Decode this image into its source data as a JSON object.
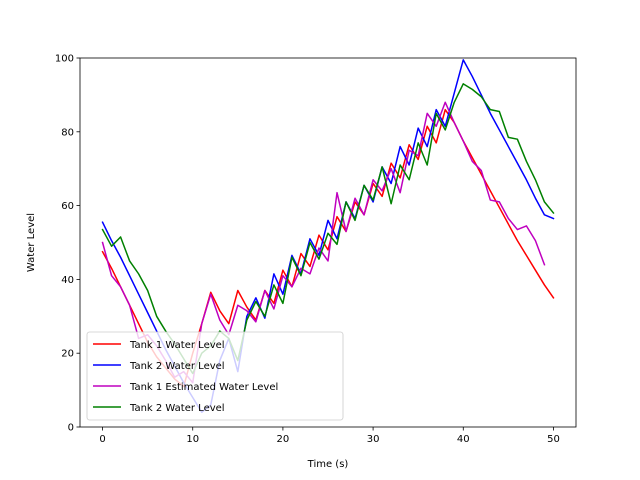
{
  "chart_data": {
    "type": "line",
    "title": "",
    "xlabel": "Time (s)",
    "ylabel": "Water Level",
    "xlim": [
      -2.5,
      52.5
    ],
    "ylim": [
      0,
      100
    ],
    "xticks": [
      0,
      10,
      20,
      30,
      40,
      50
    ],
    "yticks": [
      0,
      20,
      40,
      60,
      80,
      100
    ],
    "grid": false,
    "legend_position": "lower-left",
    "series": [
      {
        "name": "Tank 1 Water Level",
        "color": "#ff0000",
        "x": [
          0,
          1,
          2,
          3,
          4,
          5,
          6,
          7,
          8,
          9,
          10,
          11,
          12,
          13,
          14,
          15,
          16,
          17,
          18,
          19,
          20,
          21,
          22,
          23,
          24,
          25,
          26,
          27,
          28,
          29,
          30,
          31,
          32,
          33,
          34,
          35,
          36,
          37,
          38,
          39,
          40,
          41,
          42,
          43,
          44,
          45,
          46,
          47,
          48,
          49,
          50
        ],
        "y": [
          47.5,
          43,
          38,
          33,
          28,
          23,
          19,
          16,
          13,
          11,
          20,
          28,
          36.5,
          31.5,
          28,
          37,
          32.5,
          29,
          37,
          33.5,
          42.5,
          38,
          47,
          43.5,
          52,
          48,
          57,
          53,
          61,
          57.5,
          66,
          62.5,
          71.5,
          67.5,
          76.5,
          72.5,
          81.5,
          77,
          86,
          82.5,
          77.5,
          73,
          68.5,
          64,
          59.5,
          55,
          50.5,
          46.5,
          42.5,
          38.5,
          35
        ]
      },
      {
        "name": "Tank 2 Water Level",
        "color": "#0000ff",
        "x": [
          0,
          1,
          2,
          3,
          4,
          5,
          6,
          7,
          8,
          9,
          10,
          11,
          12,
          13,
          14,
          15,
          16,
          17,
          18,
          19,
          20,
          21,
          22,
          23,
          24,
          25,
          26,
          27,
          28,
          29,
          30,
          31,
          32,
          33,
          34,
          35,
          36,
          37,
          38,
          39,
          40,
          41,
          42,
          43,
          44,
          45,
          46,
          47,
          48,
          49,
          50
        ],
        "y": [
          55.5,
          50.5,
          46,
          41,
          36,
          31,
          26,
          21,
          16.5,
          12,
          8,
          4,
          6,
          18,
          24,
          15,
          30,
          35,
          29.5,
          41.5,
          36,
          46.5,
          41.5,
          51,
          46.5,
          56,
          51,
          61,
          56.5,
          65.5,
          61,
          70.5,
          66,
          76,
          71,
          81,
          76,
          86,
          81.5,
          90.5,
          99.5,
          95,
          90,
          85,
          80.5,
          76,
          71.5,
          67,
          62,
          57.5,
          56.5
        ]
      },
      {
        "name": "Tank 1 Estimated Water Level",
        "color": "#bf00bf",
        "x": [
          0,
          1,
          2,
          3,
          4,
          5,
          6,
          7,
          8,
          9,
          10,
          11,
          12,
          13,
          14,
          15,
          16,
          17,
          18,
          19,
          20,
          21,
          22,
          23,
          24,
          25,
          26,
          27,
          28,
          29,
          30,
          31,
          32,
          33,
          34,
          35,
          36,
          37,
          38,
          39,
          40,
          41,
          42,
          43,
          44,
          45,
          46,
          47,
          48,
          49
        ],
        "y": [
          50,
          41,
          38,
          33,
          24,
          25,
          22,
          18,
          13.5,
          15,
          12,
          28,
          36,
          29,
          25,
          33,
          31.5,
          28.5,
          37,
          32,
          41,
          38,
          43,
          41.5,
          48.5,
          45,
          63.5,
          53,
          62,
          57.5,
          67,
          64,
          70,
          63.5,
          75,
          73.5,
          85,
          81.5,
          88,
          82.5,
          77.5,
          72,
          69.5,
          61.5,
          61,
          56.5,
          53.5,
          54.5,
          50.5,
          44
        ]
      },
      {
        "name": "Tank 2 Water Level",
        "color": "#008000",
        "x": [
          0,
          1,
          2,
          3,
          4,
          5,
          6,
          7,
          8,
          9,
          10,
          11,
          12,
          13,
          14,
          15,
          16,
          17,
          18,
          19,
          20,
          21,
          22,
          23,
          24,
          25,
          26,
          27,
          28,
          29,
          30,
          31,
          32,
          33,
          34,
          35,
          36,
          37,
          38,
          39,
          40,
          41,
          42,
          43,
          44,
          45,
          46,
          47,
          48,
          49,
          50
        ],
        "y": [
          53.5,
          49,
          51.5,
          45,
          41.5,
          37,
          30,
          26,
          22.5,
          18.5,
          14.5,
          20,
          22,
          26,
          24,
          18,
          29,
          34,
          30,
          38.5,
          33.5,
          46,
          41,
          50,
          45.5,
          52.5,
          49.5,
          61,
          56,
          65.5,
          61.5,
          70.5,
          60.5,
          71,
          67,
          77,
          71,
          85,
          80.5,
          88,
          93,
          91.5,
          89.5,
          86,
          85.5,
          78.5,
          78,
          72,
          67,
          61,
          58
        ]
      }
    ]
  }
}
